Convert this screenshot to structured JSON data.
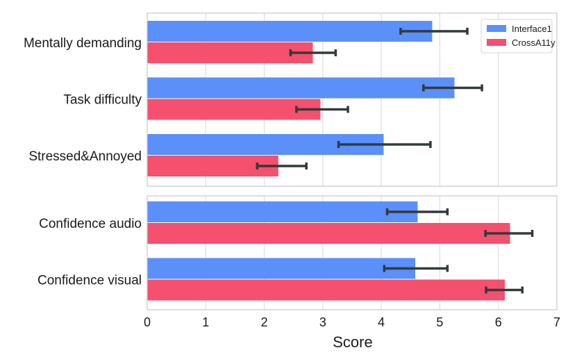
{
  "chart_data": {
    "type": "bar",
    "orientation": "horizontal",
    "xlabel": "Score",
    "xlim": [
      0,
      7
    ],
    "xticks": [
      0,
      1,
      2,
      3,
      4,
      5,
      6,
      7
    ],
    "grid": true,
    "legend_position": "top-right",
    "colors": {
      "Interface1": "#5b8ff9",
      "CrossA11y": "#f5506e",
      "error": "#333a3c"
    },
    "panels": [
      {
        "categories": [
          "Mentally demanding",
          "Task difficulty",
          "Stressed&Annoyed"
        ],
        "series": [
          {
            "name": "Interface1",
            "values": [
              4.87,
              5.25,
              4.04
            ],
            "err_low": [
              4.33,
              4.72,
              3.27
            ],
            "err_high": [
              5.47,
              5.72,
              4.84
            ]
          },
          {
            "name": "CrossA11y",
            "values": [
              2.83,
              2.96,
              2.24
            ],
            "err_low": [
              2.45,
              2.55,
              1.88
            ],
            "err_high": [
              3.22,
              3.43,
              2.72
            ]
          }
        ]
      },
      {
        "categories": [
          "Confidence audio",
          "Confidence visual"
        ],
        "series": [
          {
            "name": "Interface1",
            "values": [
              4.62,
              4.58
            ],
            "err_low": [
              4.1,
              4.05
            ],
            "err_high": [
              5.13,
              5.13
            ]
          },
          {
            "name": "CrossA11y",
            "values": [
              6.2,
              6.11
            ],
            "err_low": [
              5.78,
              5.79
            ],
            "err_high": [
              6.58,
              6.41
            ]
          }
        ]
      }
    ],
    "legend": [
      "Interface1",
      "CrossA11y"
    ]
  }
}
